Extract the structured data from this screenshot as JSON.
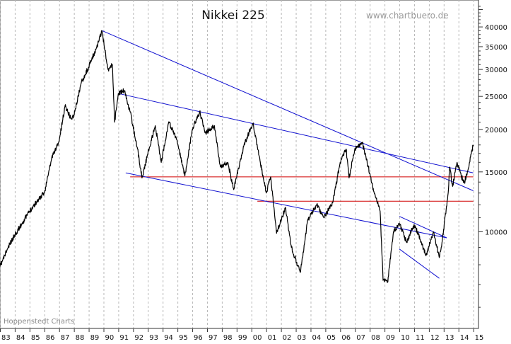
{
  "chart_data": {
    "type": "line",
    "title": "Nikkei 225",
    "source_label": "www.chartbuero.de",
    "credit_label": "Hoppenstedt Charts",
    "y_scale": "log",
    "ylim": [
      5200,
      48000
    ],
    "xlim": [
      1983.0,
      2015.35
    ],
    "grid": "vertical dashed lines at each year",
    "y_ticks": [
      {
        "value": 10000,
        "label": "10000"
      },
      {
        "value": 15000,
        "label": "15000"
      },
      {
        "value": 20000,
        "label": "20000"
      },
      {
        "value": 25000,
        "label": "25000"
      },
      {
        "value": 30000,
        "label": "30000"
      },
      {
        "value": 35000,
        "label": "35000"
      },
      {
        "value": 40000,
        "label": "40000"
      }
    ],
    "x_ticks": [
      {
        "value": 1983,
        "label": "83"
      },
      {
        "value": 1984,
        "label": "84"
      },
      {
        "value": 1985,
        "label": "85"
      },
      {
        "value": 1986,
        "label": "86"
      },
      {
        "value": 1987,
        "label": "87"
      },
      {
        "value": 1988,
        "label": "88"
      },
      {
        "value": 1989,
        "label": "89"
      },
      {
        "value": 1990,
        "label": "90"
      },
      {
        "value": 1991,
        "label": "91"
      },
      {
        "value": 1992,
        "label": "92"
      },
      {
        "value": 1993,
        "label": "93"
      },
      {
        "value": 1994,
        "label": "94"
      },
      {
        "value": 1995,
        "label": "95"
      },
      {
        "value": 1996,
        "label": "96"
      },
      {
        "value": 1997,
        "label": "97"
      },
      {
        "value": 1998,
        "label": "98"
      },
      {
        "value": 1999,
        "label": "99"
      },
      {
        "value": 2000,
        "label": "00"
      },
      {
        "value": 2001,
        "label": "01"
      },
      {
        "value": 2002,
        "label": "02"
      },
      {
        "value": 2003,
        "label": "03"
      },
      {
        "value": 2004,
        "label": "04"
      },
      {
        "value": 2005,
        "label": "05"
      },
      {
        "value": 2006,
        "label": "06"
      },
      {
        "value": 2007,
        "label": "07"
      },
      {
        "value": 2008,
        "label": "08"
      },
      {
        "value": 2009,
        "label": "09"
      },
      {
        "value": 2010,
        "label": "10"
      },
      {
        "value": 2011,
        "label": "11"
      },
      {
        "value": 2012,
        "label": "12"
      },
      {
        "value": 2013,
        "label": "13"
      },
      {
        "value": 2014,
        "label": "14"
      },
      {
        "value": 2015,
        "label": "15"
      }
    ],
    "series": [
      {
        "color": "#000000",
        "points": [
          [
            1983.0,
            7900
          ],
          [
            1983.5,
            8900
          ],
          [
            1984.0,
            9800
          ],
          [
            1984.5,
            10600
          ],
          [
            1985.0,
            11500
          ],
          [
            1985.5,
            12300
          ],
          [
            1986.0,
            13000
          ],
          [
            1986.5,
            16500
          ],
          [
            1987.0,
            18500
          ],
          [
            1987.4,
            23500
          ],
          [
            1987.8,
            21500
          ],
          [
            1988.0,
            22000
          ],
          [
            1988.5,
            27500
          ],
          [
            1989.0,
            30500
          ],
          [
            1989.5,
            34500
          ],
          [
            1989.9,
            38900
          ],
          [
            1990.3,
            30000
          ],
          [
            1990.6,
            31000
          ],
          [
            1990.75,
            21000
          ],
          [
            1991.0,
            25500
          ],
          [
            1991.4,
            26000
          ],
          [
            1991.8,
            22500
          ],
          [
            1992.3,
            17500
          ],
          [
            1992.6,
            14400
          ],
          [
            1993.0,
            17000
          ],
          [
            1993.5,
            20500
          ],
          [
            1993.9,
            16000
          ],
          [
            1994.4,
            21000
          ],
          [
            1994.9,
            19000
          ],
          [
            1995.5,
            14600
          ],
          [
            1996.0,
            20000
          ],
          [
            1996.5,
            22500
          ],
          [
            1996.9,
            19500
          ],
          [
            1997.5,
            20500
          ],
          [
            1997.9,
            15500
          ],
          [
            1998.4,
            16000
          ],
          [
            1998.8,
            13300
          ],
          [
            1999.5,
            18000
          ],
          [
            2000.1,
            20800
          ],
          [
            2000.6,
            16000
          ],
          [
            2001.0,
            13000
          ],
          [
            2001.3,
            14500
          ],
          [
            2001.7,
            9900
          ],
          [
            2002.3,
            11800
          ],
          [
            2002.7,
            9000
          ],
          [
            2003.3,
            7600
          ],
          [
            2003.8,
            10800
          ],
          [
            2004.4,
            12000
          ],
          [
            2004.9,
            11000
          ],
          [
            2005.5,
            12200
          ],
          [
            2006.0,
            16000
          ],
          [
            2006.4,
            17500
          ],
          [
            2006.6,
            14400
          ],
          [
            2007.0,
            17600
          ],
          [
            2007.5,
            18200
          ],
          [
            2007.9,
            15500
          ],
          [
            2008.3,
            13000
          ],
          [
            2008.7,
            11500
          ],
          [
            2008.9,
            7200
          ],
          [
            2009.2,
            7100
          ],
          [
            2009.6,
            10000
          ],
          [
            2010.0,
            10600
          ],
          [
            2010.5,
            9300
          ],
          [
            2011.0,
            10500
          ],
          [
            2011.3,
            9800
          ],
          [
            2011.8,
            8500
          ],
          [
            2012.3,
            10000
          ],
          [
            2012.7,
            8400
          ],
          [
            2012.9,
            9400
          ],
          [
            2013.3,
            13000
          ],
          [
            2013.4,
            15500
          ],
          [
            2013.6,
            13600
          ],
          [
            2013.9,
            16000
          ],
          [
            2014.2,
            14500
          ],
          [
            2014.4,
            14000
          ],
          [
            2014.7,
            15500
          ],
          [
            2014.9,
            17400
          ],
          [
            2015.0,
            18000
          ]
        ]
      }
    ],
    "trendlines_blue": [
      [
        [
          1989.9,
          39000
        ],
        [
          2015.0,
          13200
        ]
      ],
      [
        [
          1991.0,
          25500
        ],
        [
          2015.0,
          14900
        ]
      ],
      [
        [
          1991.5,
          14900
        ],
        [
          2013.2,
          9600
        ]
      ],
      [
        [
          2010.0,
          11100
        ],
        [
          2013.2,
          9600
        ]
      ],
      [
        [
          2010.0,
          8900
        ],
        [
          2012.7,
          7300
        ]
      ]
    ],
    "lines_red": [
      {
        "y": 14500,
        "x_from": 1991.8,
        "x_to": 2015.0
      },
      {
        "y": 12300,
        "x_from": 2000.4,
        "x_to": 2015.0
      }
    ],
    "colors": {
      "price_line": "#000000",
      "trend_lines": "#1010d0",
      "support_lines": "#d00000",
      "grid": "#b8b8b8",
      "source_text": "#9a9a9a"
    }
  }
}
